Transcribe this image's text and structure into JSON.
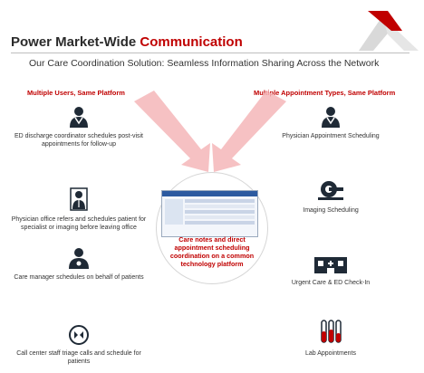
{
  "header": {
    "title_prefix": "Power Market-Wide ",
    "title_accent": "Communication",
    "subtitle": "Our Care Coordination Solution: Seamless Information Sharing Across the Network"
  },
  "left": {
    "heading": "Multiple Users,  Same Platform",
    "items": [
      {
        "icon": "doctor-icon",
        "label": "ED discharge coordinator schedules post-visit appointments for follow-up"
      },
      {
        "icon": "physician-coat-icon",
        "label": "Physician office refers and schedules patient for specialist or imaging before leaving office"
      },
      {
        "icon": "care-manager-icon",
        "label": "Care manager schedules on behalf of patients"
      },
      {
        "icon": "call-center-icon",
        "label": "Call center staff triage calls and schedule for patients"
      }
    ]
  },
  "right": {
    "heading": "Multiple Appointment Types,  Same Platform",
    "items": [
      {
        "icon": "doctor-icon",
        "label": "Physician Appointment Scheduling"
      },
      {
        "icon": "imaging-scanner-icon",
        "label": "Imaging Scheduling"
      },
      {
        "icon": "urgent-care-building-icon",
        "label": "Urgent Care & ED Check-In"
      },
      {
        "icon": "lab-tubes-icon",
        "label": "Lab Appointments"
      }
    ]
  },
  "center": {
    "label": "Care notes and direct appointment scheduling coordination on a common technology platform"
  },
  "colors": {
    "accent_red": "#c00000",
    "arrow_pink": "#f4b6b8",
    "icon_dark": "#1f2a36"
  }
}
